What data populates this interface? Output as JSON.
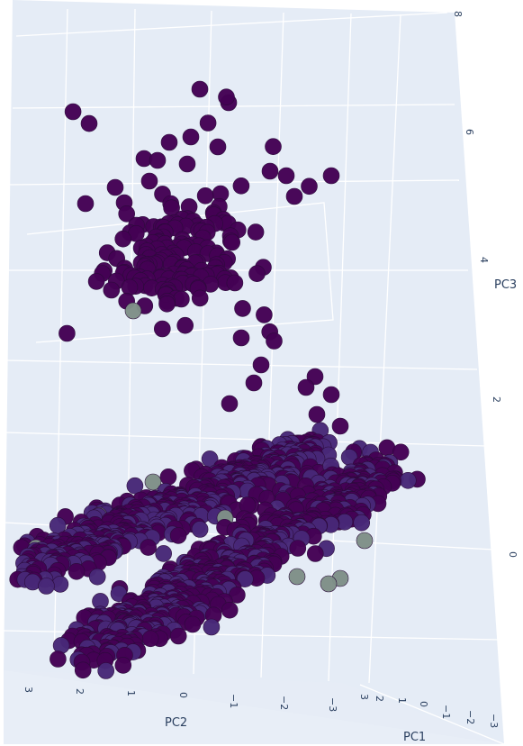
{
  "chart_data": {
    "type": "scatter3d",
    "title": "",
    "axes": {
      "x": {
        "label": "PC1",
        "ticks": [
          "3",
          "2",
          "1",
          "0",
          "−1",
          "−2",
          "−3"
        ]
      },
      "y": {
        "label": "PC2",
        "ticks": [
          "3",
          "2",
          "1",
          "0",
          "−1",
          "−2",
          "−3"
        ]
      },
      "z": {
        "label": "PC3",
        "ticks": [
          "0",
          "2",
          "4",
          "6",
          "8"
        ]
      }
    },
    "grid": true,
    "background": "#e5ecf6",
    "marker_colors": [
      "#440154",
      "#482878",
      "#7f9088"
    ],
    "series": [
      {
        "cluster": "upper",
        "approx_points": 160,
        "pc1_range": [
          -1,
          3
        ],
        "pc2_range": [
          -2,
          3.5
        ],
        "pc3_range": [
          3,
          8
        ]
      },
      {
        "cluster": "left-lower",
        "approx_points": 500,
        "pc1_range": [
          -1,
          3
        ],
        "pc2_range": [
          -1,
          3.5
        ],
        "pc3_range": [
          -0.5,
          1.5
        ]
      },
      {
        "cluster": "right-lower",
        "approx_points": 600,
        "pc1_range": [
          -3,
          1
        ],
        "pc2_range": [
          -3,
          2
        ],
        "pc3_range": [
          -1,
          2.5
        ]
      }
    ]
  }
}
